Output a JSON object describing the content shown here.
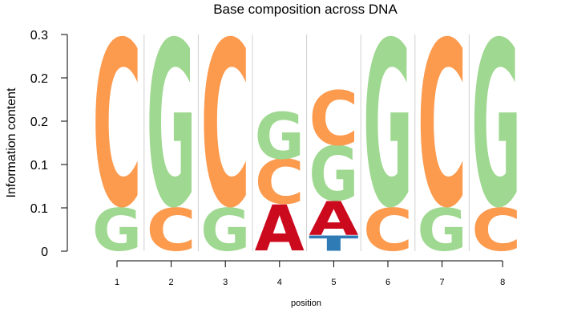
{
  "chart_data": {
    "type": "sequence-logo",
    "title": "Base composition across DNA",
    "xlabel": "position",
    "ylabel": "Information content",
    "ylim": [
      0,
      0.25
    ],
    "y_ticks": [
      0,
      0.05,
      0.1,
      0.15,
      0.2,
      0.25
    ],
    "y_tick_labels": [
      "0",
      "0.1",
      "0.1",
      "0.2",
      "0.2",
      "0.3"
    ],
    "x_ticks": [
      "1",
      "2",
      "3",
      "4",
      "5",
      "6",
      "7",
      "8"
    ],
    "grid": "vertical separators between positions",
    "colors": {
      "A": "#cc0a1e",
      "C": "#fc9a4e",
      "G": "#9fd890",
      "T": "#2f7bb5"
    },
    "positions": [
      {
        "position": "1",
        "stack": [
          {
            "base": "G",
            "height": 0.05
          },
          {
            "base": "C",
            "height": 0.195
          }
        ]
      },
      {
        "position": "2",
        "stack": [
          {
            "base": "C",
            "height": 0.05
          },
          {
            "base": "G",
            "height": 0.195
          }
        ]
      },
      {
        "position": "3",
        "stack": [
          {
            "base": "G",
            "height": 0.05
          },
          {
            "base": "C",
            "height": 0.195
          }
        ]
      },
      {
        "position": "4",
        "stack": [
          {
            "base": "A",
            "height": 0.054
          },
          {
            "base": "C",
            "height": 0.052
          },
          {
            "base": "G",
            "height": 0.055
          }
        ]
      },
      {
        "position": "5",
        "stack": [
          {
            "base": "T",
            "height": 0.018
          },
          {
            "base": "A",
            "height": 0.04
          },
          {
            "base": "G",
            "height": 0.064
          },
          {
            "base": "C",
            "height": 0.064
          }
        ]
      },
      {
        "position": "6",
        "stack": [
          {
            "base": "C",
            "height": 0.05
          },
          {
            "base": "G",
            "height": 0.195
          }
        ]
      },
      {
        "position": "7",
        "stack": [
          {
            "base": "G",
            "height": 0.05
          },
          {
            "base": "C",
            "height": 0.195
          }
        ]
      },
      {
        "position": "8",
        "stack": [
          {
            "base": "C",
            "height": 0.05
          },
          {
            "base": "G",
            "height": 0.195
          }
        ]
      }
    ]
  }
}
